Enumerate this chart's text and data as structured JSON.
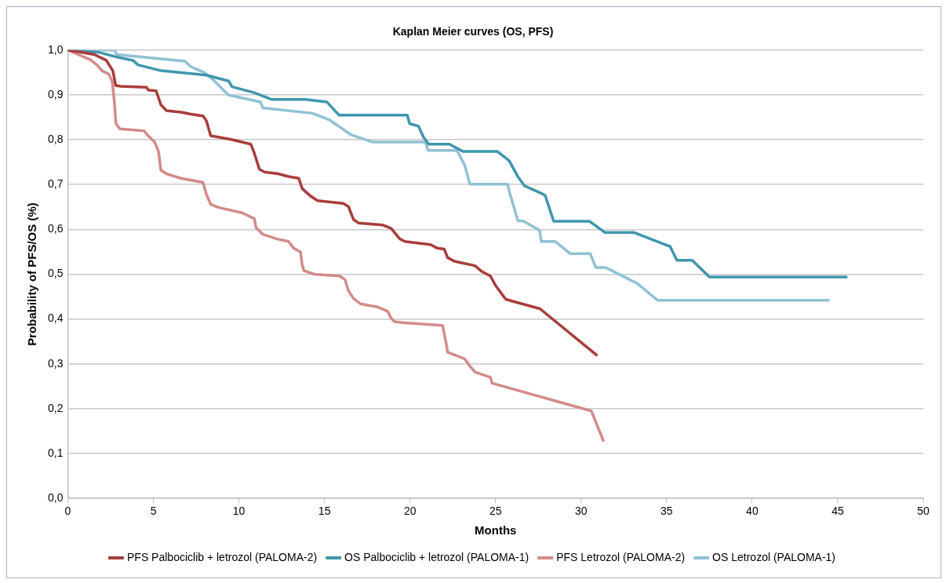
{
  "chart_data": {
    "type": "line",
    "title": "Kaplan Meier curves (OS, PFS)",
    "xlabel": "Months",
    "ylabel": "Probability of PFS/OS (%)",
    "xlim": [
      0,
      50
    ],
    "xticks": [
      0,
      5,
      10,
      15,
      20,
      25,
      30,
      35,
      40,
      45,
      50
    ],
    "ylim": [
      0,
      1
    ],
    "yticks": [
      {
        "value": 0,
        "label": "0,0"
      },
      {
        "value": 0.1,
        "label": "0,1"
      },
      {
        "value": 0.2,
        "label": "0,2"
      },
      {
        "value": 0.3,
        "label": "0,3"
      },
      {
        "value": 0.4,
        "label": "0,4"
      },
      {
        "value": 0.5,
        "label": "0,5"
      },
      {
        "value": 0.6,
        "label": "0,6"
      },
      {
        "value": 0.7,
        "label": "0,7"
      },
      {
        "value": 0.8,
        "label": "0,8"
      },
      {
        "value": 0.9,
        "label": "0,9"
      },
      {
        "value": 1,
        "label": "1,0"
      }
    ],
    "grid": "y",
    "legend": "bottom",
    "marker": "none",
    "line_style": "solid",
    "series": [
      {
        "name": "PFS Palbociclib + letrozol (PALOMA-2)",
        "color": "#a93d3a",
        "x": [
          0,
          1.55,
          2.25,
          2.63,
          2.8,
          3.1,
          4.6,
          4.7,
          5.16,
          5.44,
          5.77,
          6.7,
          7.2,
          7.9,
          8.1,
          8.35,
          9.5,
          10.7,
          10.9,
          11.2,
          11.5,
          12.3,
          12.9,
          13.5,
          13.7,
          14.2,
          14.6,
          16.1,
          16.4,
          16.7,
          17.0,
          18.4,
          18.9,
          19.4,
          19.7,
          21.2,
          21.6,
          22.0,
          22.2,
          22.6,
          23.8,
          24.2,
          24.7,
          25.0,
          25.6,
          27.6,
          30.9
        ],
        "values": [
          1,
          0.99,
          0.977,
          0.954,
          0.921,
          0.919,
          0.917,
          0.911,
          0.909,
          0.878,
          0.865,
          0.861,
          0.857,
          0.853,
          0.842,
          0.809,
          0.801,
          0.79,
          0.77,
          0.734,
          0.728,
          0.724,
          0.718,
          0.714,
          0.691,
          0.674,
          0.664,
          0.658,
          0.651,
          0.622,
          0.614,
          0.61,
          0.602,
          0.579,
          0.573,
          0.566,
          0.558,
          0.556,
          0.537,
          0.529,
          0.519,
          0.506,
          0.496,
          0.475,
          0.444,
          0.423,
          0.32
        ]
      },
      {
        "name": "OS Palbociclib + letrozol (PALOMA-1)",
        "color": "#3f96ad",
        "x": [
          0,
          1.8,
          2.8,
          3.8,
          4.1,
          5.45,
          8.1,
          9.4,
          9.6,
          10.9,
          11.9,
          13.9,
          15.15,
          15.85,
          19.84,
          19.98,
          20.5,
          20.8,
          21.1,
          22.3,
          23.1,
          25.1,
          25.8,
          26.3,
          26.7,
          27.7,
          27.9,
          28.4,
          30.5,
          31.4,
          33.1,
          35.2,
          35.6,
          36.5,
          37.5,
          45.5
        ],
        "values": [
          1,
          0.995,
          0.985,
          0.977,
          0.967,
          0.954,
          0.944,
          0.931,
          0.918,
          0.905,
          0.89,
          0.89,
          0.884,
          0.855,
          0.855,
          0.836,
          0.83,
          0.805,
          0.79,
          0.79,
          0.774,
          0.774,
          0.753,
          0.718,
          0.697,
          0.68,
          0.676,
          0.618,
          0.618,
          0.593,
          0.593,
          0.562,
          0.531,
          0.531,
          0.494,
          0.494
        ]
      },
      {
        "name": "PFS Letrozol (PALOMA-2)",
        "color": "#d28b8a",
        "x": [
          0,
          0.6,
          1.3,
          1.7,
          2.0,
          2.4,
          2.6,
          2.72,
          2.81,
          3.05,
          4.46,
          4.64,
          5.07,
          5.3,
          5.44,
          5.77,
          6.6,
          7.9,
          8.1,
          8.35,
          8.8,
          10.2,
          10.4,
          10.9,
          11.0,
          11.4,
          12.2,
          12.9,
          13.2,
          13.6,
          13.7,
          13.8,
          14.4,
          15.9,
          16.2,
          16.4,
          16.7,
          17.1,
          18.1,
          18.7,
          18.9,
          19.1,
          19.6,
          21.9,
          22.1,
          22.2,
          23.2,
          23.5,
          23.8,
          24.7,
          24.8,
          30.6,
          31.3
        ],
        "values": [
          1,
          0.99,
          0.979,
          0.967,
          0.954,
          0.946,
          0.929,
          0.884,
          0.836,
          0.824,
          0.82,
          0.811,
          0.795,
          0.774,
          0.732,
          0.724,
          0.714,
          0.705,
          0.678,
          0.656,
          0.649,
          0.637,
          0.633,
          0.624,
          0.604,
          0.589,
          0.579,
          0.573,
          0.558,
          0.55,
          0.521,
          0.508,
          0.5,
          0.496,
          0.488,
          0.463,
          0.446,
          0.434,
          0.427,
          0.417,
          0.402,
          0.394,
          0.392,
          0.386,
          0.349,
          0.326,
          0.311,
          0.295,
          0.282,
          0.27,
          0.257,
          0.195,
          0.129
        ]
      },
      {
        "name": "OS Letrozol (PALOMA-1)",
        "color": "#8fc1d3",
        "x": [
          0,
          2.72,
          2.86,
          6.85,
          7.18,
          7.97,
          8.44,
          9.38,
          11.26,
          11.4,
          14.3,
          15.3,
          16.56,
          17.8,
          20.9,
          21.06,
          22.75,
          23.2,
          23.5,
          25.7,
          25.84,
          26.3,
          26.64,
          27.58,
          27.67,
          28.5,
          29.36,
          30.53,
          30.86,
          31.43,
          33.3,
          34.47,
          44.46
        ],
        "values": [
          1,
          1,
          0.99,
          0.975,
          0.963,
          0.95,
          0.936,
          0.9,
          0.884,
          0.871,
          0.859,
          0.844,
          0.811,
          0.795,
          0.795,
          0.776,
          0.776,
          0.743,
          0.701,
          0.701,
          0.68,
          0.62,
          0.618,
          0.598,
          0.573,
          0.573,
          0.546,
          0.546,
          0.515,
          0.515,
          0.479,
          0.442,
          0.442
        ]
      }
    ]
  }
}
